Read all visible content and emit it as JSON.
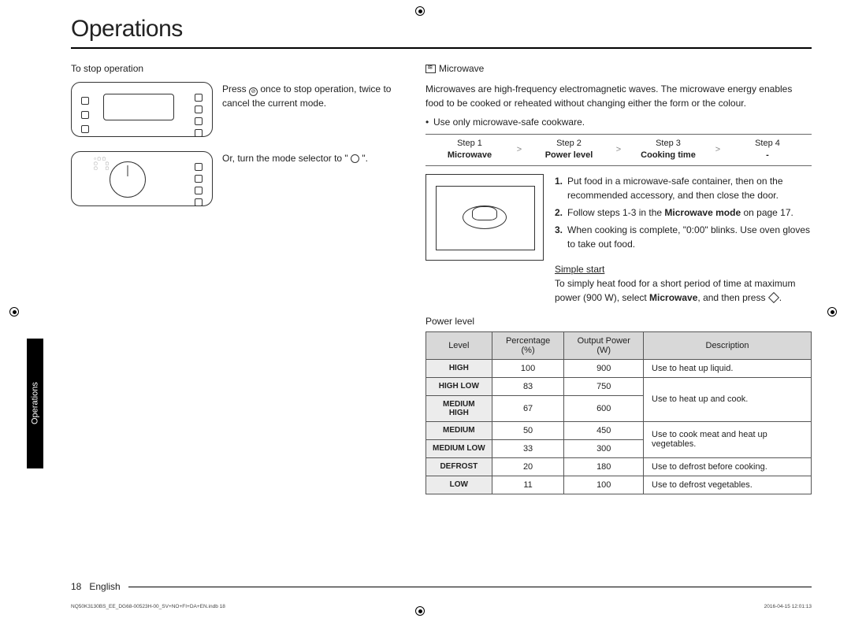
{
  "title": "Operations",
  "side_tab": "Operations",
  "left": {
    "stop_heading": "To stop operation",
    "stop_text_a": "Press ",
    "stop_text_b": " once to stop operation, twice to cancel the current mode.",
    "dial_text_a": "Or, turn the mode selector to \" ",
    "dial_text_b": " \"."
  },
  "right": {
    "mw_heading": "Microwave",
    "mw_body": "Microwaves are high-frequency electromagnetic waves. The microwave energy enables food to be cooked or reheated without changing either the form or the colour.",
    "mw_bullet": "Use only microwave-safe cookware.",
    "steps": [
      {
        "top": "Step 1",
        "bot": "Microwave"
      },
      {
        "top": "Step 2",
        "bot": "Power level"
      },
      {
        "top": "Step 3",
        "bot": "Cooking time"
      },
      {
        "top": "Step 4",
        "bot": "-"
      }
    ],
    "numlist": [
      {
        "n": "1.",
        "t": "Put food in a microwave-safe container, then on the recommended accessory, and then close the door."
      },
      {
        "n": "2.",
        "t_a": "Follow steps 1-3 in the ",
        "t_bold": "Microwave mode",
        "t_b": " on page 17."
      },
      {
        "n": "3.",
        "t": "When cooking is complete, \"0:00\" blinks. Use oven gloves to take out food."
      }
    ],
    "simple_head": "Simple start",
    "simple_a": "To simply heat food for a short period of time at maximum power (900 W), select ",
    "simple_bold": "Microwave",
    "simple_b": ", and then press ",
    "simple_c": ".",
    "pl_heading": "Power level",
    "table": {
      "headers": [
        "Level",
        "Percentage (%)",
        "Output Power (W)",
        "Description"
      ],
      "rows": [
        {
          "lvl": "HIGH",
          "pct": "100",
          "w": "900",
          "desc": "Use to heat up liquid.",
          "rowspan": 1
        },
        {
          "lvl": "HIGH LOW",
          "pct": "83",
          "w": "750",
          "desc": "Use to heat up and cook.",
          "rowspan": 2,
          "merge": "start"
        },
        {
          "lvl": "MEDIUM HIGH",
          "pct": "67",
          "w": "600",
          "merge": "cont"
        },
        {
          "lvl": "MEDIUM",
          "pct": "50",
          "w": "450",
          "desc": "Use to cook meat and heat up vegetables.",
          "rowspan": 2,
          "merge": "start"
        },
        {
          "lvl": "MEDIUM LOW",
          "pct": "33",
          "w": "300",
          "merge": "cont"
        },
        {
          "lvl": "DEFROST",
          "pct": "20",
          "w": "180",
          "desc": "Use to defrost before cooking.",
          "rowspan": 1
        },
        {
          "lvl": "LOW",
          "pct": "11",
          "w": "100",
          "desc": "Use to defrost vegetables.",
          "rowspan": 1
        }
      ]
    }
  },
  "footer": {
    "page": "18",
    "lang": "English"
  },
  "imprint": {
    "left": "NQ50K3130BS_EE_DG68-00523H-00_SV+NO+FI+DA+EN.indb   18",
    "right": "2016-04-15   12:01:13"
  }
}
